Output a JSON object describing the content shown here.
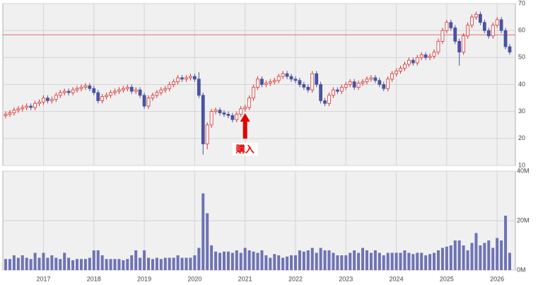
{
  "chart_data": {
    "type": "candlestick",
    "categories": [
      null,
      null,
      null,
      null,
      null,
      null,
      null,
      null,
      null,
      "2017",
      null,
      null,
      null,
      null,
      null,
      null,
      null,
      null,
      null,
      null,
      null,
      "2018",
      null,
      null,
      null,
      null,
      null,
      null,
      null,
      null,
      null,
      null,
      null,
      "2019",
      null,
      null,
      null,
      null,
      null,
      null,
      null,
      null,
      null,
      null,
      null,
      "2020",
      null,
      null,
      null,
      null,
      null,
      null,
      null,
      null,
      null,
      null,
      null,
      "2021",
      null,
      null,
      null,
      null,
      null,
      null,
      null,
      null,
      null,
      null,
      null,
      "2022",
      null,
      null,
      null,
      null,
      null,
      null,
      null,
      null,
      null,
      null,
      null,
      "2023",
      null,
      null,
      null,
      null,
      null,
      null,
      null,
      null,
      null,
      null,
      null,
      "2024",
      null,
      null,
      null,
      null,
      null,
      null,
      null,
      null,
      null,
      null,
      null,
      "2025",
      null,
      null,
      null,
      null,
      null,
      null,
      null,
      null,
      null,
      null,
      null,
      "2026",
      null,
      null,
      null
    ],
    "open": [
      28.5,
      29,
      29.5,
      30.5,
      31,
      31.5,
      32,
      31.5,
      33,
      33.5,
      35,
      34,
      34.5,
      36,
      37,
      37.5,
      37,
      38,
      38.5,
      39,
      39.5,
      38.5,
      37,
      34,
      35.5,
      36,
      37,
      37.5,
      38,
      38.5,
      39,
      37.5,
      38,
      36,
      32,
      35,
      36,
      37,
      38,
      38.5,
      40,
      41,
      42.5,
      42,
      42.5,
      43,
      42,
      36,
      18,
      25,
      30,
      30.5,
      29.5,
      29,
      28.5,
      27,
      29,
      31,
      31.5,
      35,
      39,
      42,
      40,
      40.5,
      41,
      41.5,
      43,
      44,
      43,
      42,
      41.5,
      40,
      39,
      38,
      44,
      40,
      34,
      33,
      36,
      38,
      37.5,
      39,
      40,
      41,
      39,
      40.5,
      41,
      42,
      42.5,
      41.5,
      40,
      38.5,
      42,
      44,
      45,
      46,
      47.5,
      49,
      48,
      50,
      51,
      50,
      50.5,
      52,
      56,
      60,
      63,
      61,
      56,
      52,
      58,
      62,
      65,
      66,
      63,
      60,
      58,
      62,
      64,
      60,
      54
    ],
    "high": [
      30,
      30.5,
      31.5,
      32,
      32.5,
      33,
      33,
      34,
      34.5,
      36,
      36,
      35.5,
      37,
      38,
      38.5,
      38.5,
      39,
      39.5,
      40,
      40.5,
      40.5,
      39.5,
      38,
      36.5,
      37,
      38,
      38.5,
      39,
      39.5,
      40,
      40,
      39,
      39,
      37,
      36,
      37,
      38,
      39,
      39.5,
      41,
      42,
      43.5,
      43.5,
      43.5,
      44,
      44,
      44.5,
      37,
      26,
      31,
      31.5,
      31.5,
      30.5,
      30,
      29.5,
      30,
      32,
      32.5,
      36,
      40,
      43,
      43,
      41.5,
      42,
      42.5,
      44,
      45,
      45,
      44,
      43,
      42.5,
      41,
      40,
      45,
      45,
      41,
      35,
      37,
      39,
      39,
      40,
      41,
      42,
      42,
      41.5,
      42,
      43,
      43.5,
      43.5,
      42.5,
      41,
      43,
      45,
      46,
      47,
      48.5,
      50,
      50,
      51,
      52,
      52,
      51.5,
      53,
      57,
      61,
      64,
      64,
      62,
      57,
      59,
      63,
      66,
      67,
      67,
      64,
      61,
      63,
      65,
      65,
      61,
      55
    ],
    "low": [
      27.5,
      28,
      28.5,
      29.5,
      30,
      30.5,
      30.5,
      30.5,
      32,
      32.5,
      33,
      33,
      33.5,
      35,
      36,
      36,
      36,
      37,
      37.5,
      38,
      37.5,
      36,
      33,
      33,
      34.5,
      35,
      36,
      36.5,
      37,
      37.5,
      36.5,
      36.5,
      35,
      31,
      31,
      34,
      35,
      36,
      37,
      37.5,
      39,
      40,
      41,
      41,
      41.5,
      41,
      35,
      14,
      16,
      24,
      29,
      28.5,
      28,
      27.5,
      26,
      26,
      28,
      30,
      30.5,
      34,
      38,
      39,
      39,
      39.5,
      40,
      40.5,
      42,
      42,
      41,
      40.5,
      39,
      38,
      37,
      37,
      39,
      33,
      32,
      32,
      35,
      36.5,
      36.5,
      38,
      39,
      38,
      38,
      39.5,
      40,
      41,
      40.5,
      39,
      37.5,
      37.5,
      41,
      43,
      44,
      45,
      46.5,
      47,
      47,
      49,
      49,
      49,
      49.5,
      51,
      55,
      59,
      60,
      55,
      47,
      51,
      57,
      61,
      64,
      62,
      59,
      57,
      57,
      61,
      59,
      53,
      51
    ],
    "close": [
      29,
      29.5,
      30.5,
      31,
      31.5,
      32,
      31.5,
      33,
      33.5,
      35,
      34,
      34.5,
      36,
      37,
      37.5,
      37,
      38,
      38.5,
      39,
      39.5,
      38.5,
      37,
      34,
      35.5,
      36,
      37,
      37.5,
      38,
      38.5,
      39,
      37.5,
      38,
      36,
      32,
      35,
      36,
      37,
      38,
      38.5,
      40,
      41,
      42.5,
      42,
      42.5,
      43,
      42,
      36,
      18,
      25,
      30,
      30.5,
      29.5,
      29,
      28.5,
      27,
      29,
      31,
      31.5,
      35,
      39,
      42,
      40,
      40.5,
      41,
      41.5,
      43,
      44,
      43,
      42,
      41.5,
      40,
      39,
      38,
      44,
      40,
      34,
      33,
      36,
      38,
      37.5,
      39,
      40,
      41,
      39,
      40.5,
      41,
      42,
      42.5,
      41.5,
      40,
      38.5,
      42,
      44,
      45,
      46,
      47.5,
      49,
      48,
      50,
      51,
      50,
      50.5,
      52,
      56,
      60,
      63,
      61,
      56,
      52,
      58,
      62,
      65,
      66,
      63,
      60,
      58,
      62,
      64,
      60,
      54,
      52
    ],
    "volume": [
      4.5,
      4.5,
      6,
      5,
      6,
      5,
      4.5,
      7,
      5,
      7,
      5,
      6,
      5,
      4.5,
      7,
      5,
      4,
      4.5,
      4.5,
      4.5,
      5,
      8,
      8,
      6,
      4.5,
      4.5,
      4.5,
      4.5,
      4,
      4.5,
      6,
      8,
      5,
      8,
      5,
      4.5,
      5,
      4.5,
      5,
      5,
      5,
      6,
      5,
      5,
      5,
      6,
      9,
      31,
      23,
      10,
      7.5,
      7,
      7.5,
      7.5,
      7,
      8,
      7,
      9,
      8,
      7.5,
      7,
      8,
      6,
      5,
      6.5,
      6,
      5,
      5.5,
      6,
      6,
      8,
      7.5,
      8,
      9,
      7,
      9,
      8,
      8,
      7,
      6,
      6,
      6,
      7,
      8,
      7,
      9,
      8,
      7,
      8,
      7,
      6,
      7,
      7,
      7,
      7,
      8,
      7,
      6.5,
      7,
      7,
      6,
      6.5,
      7,
      8,
      9,
      9.5,
      10,
      12,
      12,
      10,
      8,
      11,
      15,
      10,
      11,
      12,
      9,
      13,
      12,
      22,
      7
    ],
    "up_color": "#d83030",
    "down_color": "#4a52a0",
    "volume_color": "#6e73b4",
    "ylim": [
      10,
      70
    ],
    "yticks": [
      10,
      20,
      30,
      40,
      50,
      60,
      70
    ],
    "volume_lim": [
      0,
      40
    ],
    "volume_ticks": [
      {
        "value": 0,
        "label": "0M"
      },
      {
        "value": 20,
        "label": "20M"
      },
      {
        "value": 40,
        "label": "40M"
      }
    ],
    "reference_line": {
      "value": 58.4,
      "color": "#e07070"
    },
    "annotation": {
      "text": "購入",
      "category": "2021",
      "color": "#e00000"
    },
    "grid": true
  }
}
